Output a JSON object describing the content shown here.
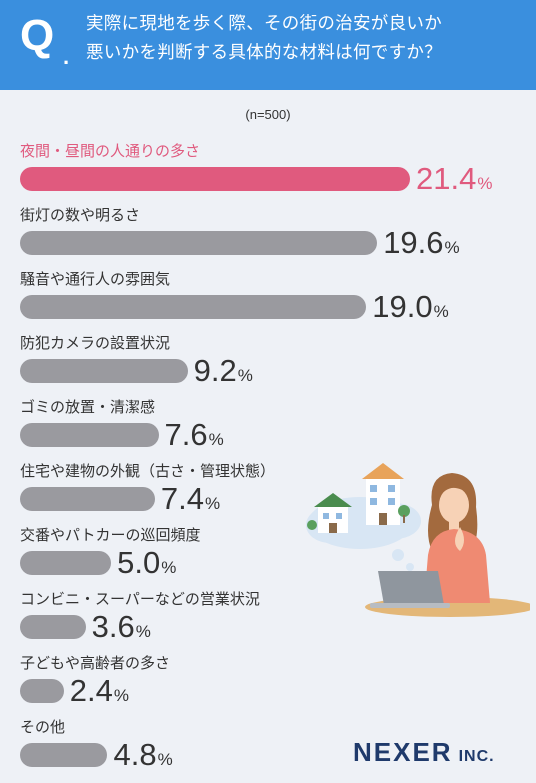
{
  "header": {
    "q_mark": "Q",
    "q_dot": ".",
    "question_line1": "実際に現地を歩く際、その街の治安が良いか",
    "question_line2": "悪いかを判断する具体的な材料は何ですか？"
  },
  "sample_note": "(n=500)",
  "logo": {
    "main": "NEXER",
    "sub": "INC."
  },
  "colors": {
    "header": "#3a8fde",
    "highlight": "#e05a7e",
    "bar": "#9a9a9f",
    "background": "#eef1f6"
  },
  "chart_data": {
    "type": "bar",
    "orientation": "horizontal",
    "unit": "%",
    "categories": [
      "夜間・昼間の人通りの多さ",
      "街灯の数や明るさ",
      "騒音や通行人の雰囲気",
      "防犯カメラの設置状況",
      "ゴミの放置・清潔感",
      "住宅や建物の外観（古さ・管理状態）",
      "交番やパトカーの巡回頻度",
      "コンビニ・スーパーなどの営業状況",
      "子どもや高齢者の多さ",
      "その他"
    ],
    "values": [
      21.4,
      19.6,
      19.0,
      9.2,
      7.6,
      7.4,
      5.0,
      3.6,
      2.4,
      4.8
    ],
    "value_labels": [
      "21.4",
      "19.6",
      "19.0",
      "9.2",
      "7.6",
      "7.4",
      "5.0",
      "3.6",
      "2.4",
      "4.8"
    ],
    "highlight_index": 0
  }
}
